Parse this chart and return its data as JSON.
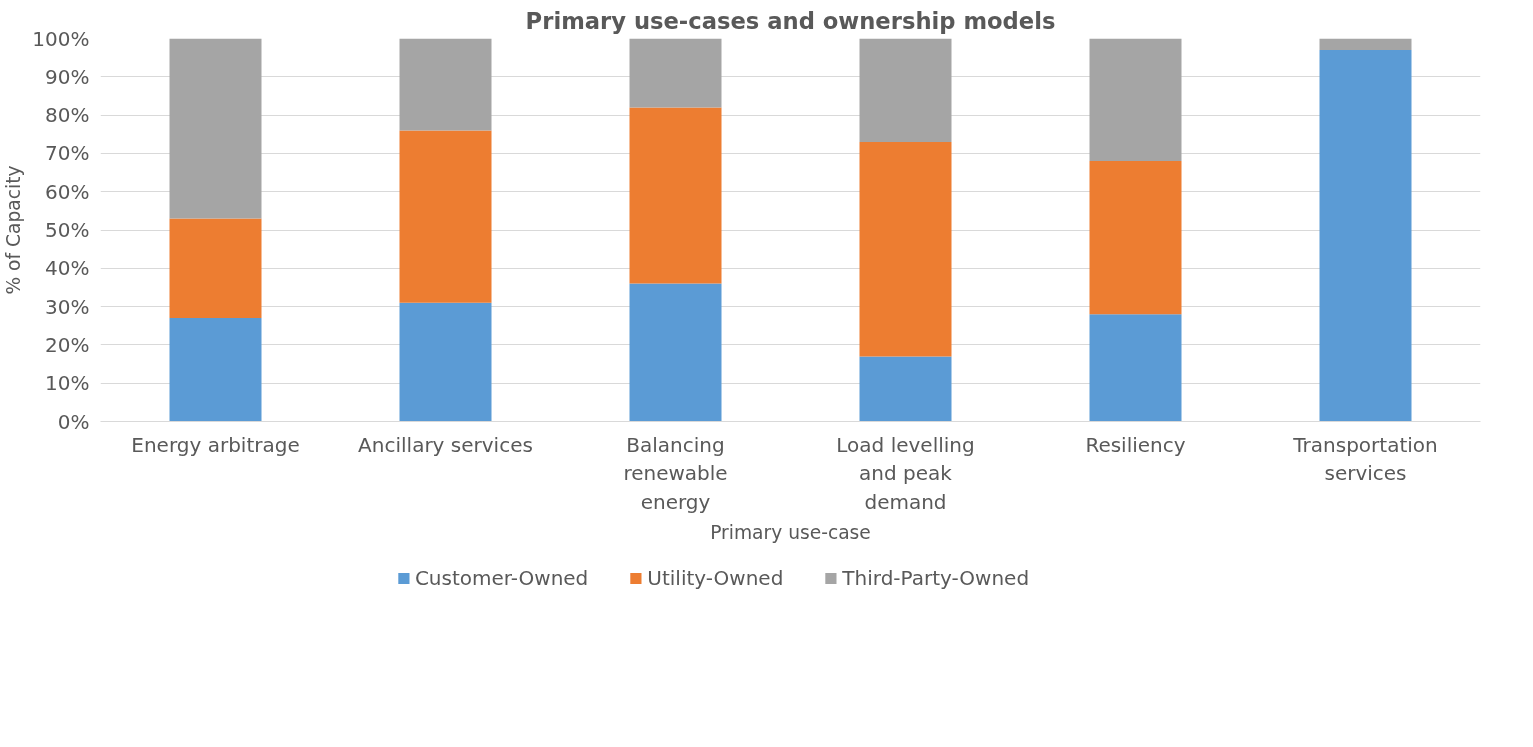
{
  "chart_data": {
    "type": "bar",
    "stacked": true,
    "title": "Primary use-cases and ownership models",
    "xlabel": "Primary use-case",
    "ylabel": "% of Capacity",
    "categories": [
      "Energy arbitrage",
      "Ancillary services",
      "Balancing renewable energy",
      "Load levelling and peak demand",
      "Resiliency",
      "Transportation services"
    ],
    "series": [
      {
        "name": "Customer-Owned",
        "color": "#5b9bd5",
        "values": [
          27,
          31,
          36,
          17,
          28,
          97
        ]
      },
      {
        "name": "Utility-Owned",
        "color": "#ed7d31",
        "values": [
          26,
          45,
          46,
          56,
          40,
          0
        ]
      },
      {
        "name": "Third-Party-Owned",
        "color": "#a5a5a5",
        "values": [
          47,
          24,
          18,
          27,
          32,
          3
        ]
      }
    ],
    "ylim": [
      0,
      100
    ],
    "yticks": [
      {
        "value": 0,
        "label": "0%"
      },
      {
        "value": 10,
        "label": "10%"
      },
      {
        "value": 20,
        "label": "20%"
      },
      {
        "value": 30,
        "label": "30%"
      },
      {
        "value": 40,
        "label": "40%"
      },
      {
        "value": 50,
        "label": "50%"
      },
      {
        "value": 60,
        "label": "60%"
      },
      {
        "value": 70,
        "label": "70%"
      },
      {
        "value": 80,
        "label": "80%"
      },
      {
        "value": 90,
        "label": "90%"
      },
      {
        "value": 100,
        "label": "100%"
      }
    ],
    "grid": "y",
    "legend": "bottom"
  }
}
